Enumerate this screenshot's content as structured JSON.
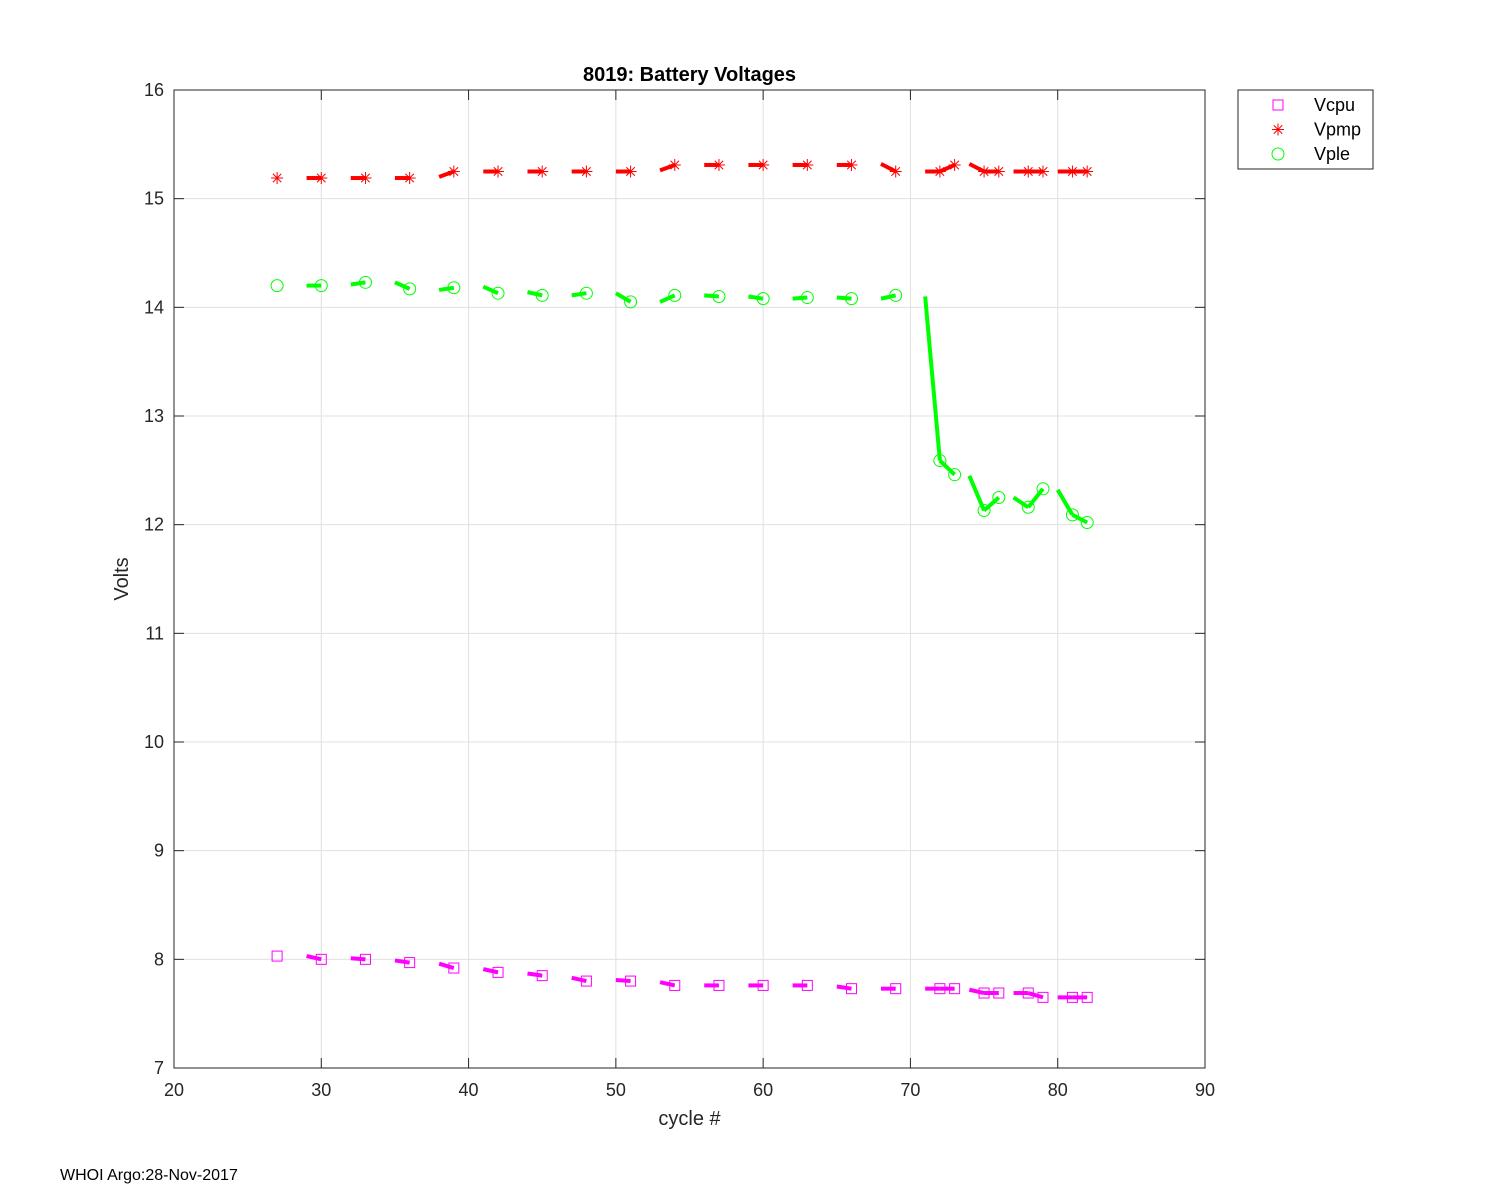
{
  "chart_data": {
    "type": "line",
    "title": "8019: Battery Voltages",
    "xlabel": "cycle #",
    "ylabel": "Volts",
    "xlim": [
      20,
      90
    ],
    "ylim": [
      7,
      16
    ],
    "xticks": [
      20,
      30,
      40,
      50,
      60,
      70,
      80,
      90
    ],
    "yticks": [
      7,
      8,
      9,
      10,
      11,
      12,
      13,
      14,
      15,
      16
    ],
    "grid": true,
    "legend_position": "outside-top-right",
    "series": [
      {
        "name": "Vcpu",
        "color": "#ff00ff",
        "marker": "square",
        "points": [
          [
            27,
            8.03
          ],
          [
            30,
            8.0
          ],
          [
            33,
            8.0
          ],
          [
            36,
            7.97
          ],
          [
            39,
            7.92
          ],
          [
            42,
            7.88
          ],
          [
            45,
            7.85
          ],
          [
            48,
            7.8
          ],
          [
            51,
            7.8
          ],
          [
            54,
            7.76
          ],
          [
            57,
            7.76
          ],
          [
            60,
            7.76
          ],
          [
            63,
            7.76
          ],
          [
            66,
            7.73
          ],
          [
            69,
            7.73
          ],
          [
            72,
            7.73
          ],
          [
            73,
            7.73
          ],
          [
            75,
            7.69
          ],
          [
            76,
            7.69
          ],
          [
            78,
            7.69
          ],
          [
            79,
            7.65
          ],
          [
            81,
            7.65
          ],
          [
            82,
            7.65
          ]
        ],
        "segments": [
          [
            29,
            8.03,
            30,
            8.0
          ],
          [
            32,
            8.01,
            33,
            8.0
          ],
          [
            35,
            7.99,
            36,
            7.97
          ],
          [
            38,
            7.96,
            39,
            7.92
          ],
          [
            41,
            7.91,
            42,
            7.88
          ],
          [
            44,
            7.87,
            45,
            7.85
          ],
          [
            47,
            7.83,
            48,
            7.8
          ],
          [
            50,
            7.81,
            51,
            7.8
          ],
          [
            53,
            7.79,
            54,
            7.76
          ],
          [
            56,
            7.76,
            57,
            7.76
          ],
          [
            59,
            7.76,
            60,
            7.76
          ],
          [
            62,
            7.76,
            63,
            7.76
          ],
          [
            65,
            7.75,
            66,
            7.73
          ],
          [
            68,
            7.73,
            69,
            7.73
          ],
          [
            71,
            7.73,
            72,
            7.73
          ],
          [
            72,
            7.73,
            73,
            7.73
          ],
          [
            74,
            7.72,
            75,
            7.69
          ],
          [
            75,
            7.69,
            76,
            7.69
          ],
          [
            77,
            7.69,
            78,
            7.69
          ],
          [
            78,
            7.69,
            79,
            7.65
          ],
          [
            80,
            7.65,
            81,
            7.65
          ],
          [
            81,
            7.65,
            82,
            7.65
          ]
        ]
      },
      {
        "name": "Vpmp",
        "color": "#ff0000",
        "marker": "asterisk",
        "points": [
          [
            27,
            15.19
          ],
          [
            30,
            15.19
          ],
          [
            33,
            15.19
          ],
          [
            36,
            15.19
          ],
          [
            39,
            15.25
          ],
          [
            42,
            15.25
          ],
          [
            45,
            15.25
          ],
          [
            48,
            15.25
          ],
          [
            51,
            15.25
          ],
          [
            54,
            15.31
          ],
          [
            57,
            15.31
          ],
          [
            60,
            15.31
          ],
          [
            63,
            15.31
          ],
          [
            66,
            15.31
          ],
          [
            69,
            15.25
          ],
          [
            72,
            15.25
          ],
          [
            73,
            15.31
          ],
          [
            75,
            15.25
          ],
          [
            76,
            15.25
          ],
          [
            78,
            15.25
          ],
          [
            79,
            15.25
          ],
          [
            81,
            15.25
          ],
          [
            82,
            15.25
          ]
        ],
        "segments": [
          [
            29,
            15.19,
            30,
            15.19
          ],
          [
            32,
            15.19,
            33,
            15.19
          ],
          [
            35,
            15.19,
            36,
            15.19
          ],
          [
            38,
            15.2,
            39,
            15.25
          ],
          [
            41,
            15.25,
            42,
            15.25
          ],
          [
            44,
            15.25,
            45,
            15.25
          ],
          [
            47,
            15.25,
            48,
            15.25
          ],
          [
            50,
            15.25,
            51,
            15.25
          ],
          [
            53,
            15.26,
            54,
            15.31
          ],
          [
            56,
            15.31,
            57,
            15.31
          ],
          [
            59,
            15.31,
            60,
            15.31
          ],
          [
            62,
            15.31,
            63,
            15.31
          ],
          [
            65,
            15.31,
            66,
            15.31
          ],
          [
            68,
            15.32,
            69,
            15.25
          ],
          [
            71,
            15.25,
            72,
            15.25
          ],
          [
            72,
            15.25,
            73,
            15.31
          ],
          [
            74,
            15.32,
            75,
            15.25
          ],
          [
            75,
            15.25,
            76,
            15.25
          ],
          [
            77,
            15.25,
            78,
            15.25
          ],
          [
            78,
            15.25,
            79,
            15.25
          ],
          [
            80,
            15.25,
            81,
            15.25
          ],
          [
            81,
            15.25,
            82,
            15.25
          ]
        ]
      },
      {
        "name": "Vple",
        "color": "#00ff00",
        "marker": "circle",
        "points": [
          [
            27,
            14.2
          ],
          [
            30,
            14.2
          ],
          [
            33,
            14.23
          ],
          [
            36,
            14.17
          ],
          [
            39,
            14.18
          ],
          [
            42,
            14.13
          ],
          [
            45,
            14.11
          ],
          [
            48,
            14.13
          ],
          [
            51,
            14.05
          ],
          [
            54,
            14.11
          ],
          [
            57,
            14.1
          ],
          [
            60,
            14.08
          ],
          [
            63,
            14.09
          ],
          [
            66,
            14.08
          ],
          [
            69,
            14.11
          ],
          [
            72,
            12.59
          ],
          [
            73,
            12.46
          ],
          [
            75,
            12.13
          ],
          [
            76,
            12.25
          ],
          [
            78,
            12.16
          ],
          [
            79,
            12.33
          ],
          [
            81,
            12.09
          ],
          [
            82,
            12.02
          ]
        ],
        "segments": [
          [
            29,
            14.2,
            30,
            14.2
          ],
          [
            32,
            14.21,
            33,
            14.23
          ],
          [
            35,
            14.23,
            36,
            14.17
          ],
          [
            38,
            14.16,
            39,
            14.18
          ],
          [
            41,
            14.19,
            42,
            14.13
          ],
          [
            44,
            14.14,
            45,
            14.11
          ],
          [
            47,
            14.11,
            48,
            14.13
          ],
          [
            50,
            14.13,
            51,
            14.05
          ],
          [
            53,
            14.05,
            54,
            14.11
          ],
          [
            56,
            14.11,
            57,
            14.1
          ],
          [
            59,
            14.1,
            60,
            14.08
          ],
          [
            62,
            14.08,
            63,
            14.09
          ],
          [
            65,
            14.09,
            66,
            14.08
          ],
          [
            68,
            14.08,
            69,
            14.11
          ],
          [
            71,
            14.1,
            72,
            12.59
          ],
          [
            72,
            12.59,
            73,
            12.46
          ],
          [
            74,
            12.45,
            75,
            12.13
          ],
          [
            75,
            12.13,
            76,
            12.25
          ],
          [
            77,
            12.25,
            78,
            12.16
          ],
          [
            78,
            12.16,
            79,
            12.33
          ],
          [
            80,
            12.32,
            81,
            12.09
          ],
          [
            81,
            12.09,
            82,
            12.02
          ]
        ]
      }
    ]
  },
  "footer": "WHOI Argo:28-Nov-2017"
}
